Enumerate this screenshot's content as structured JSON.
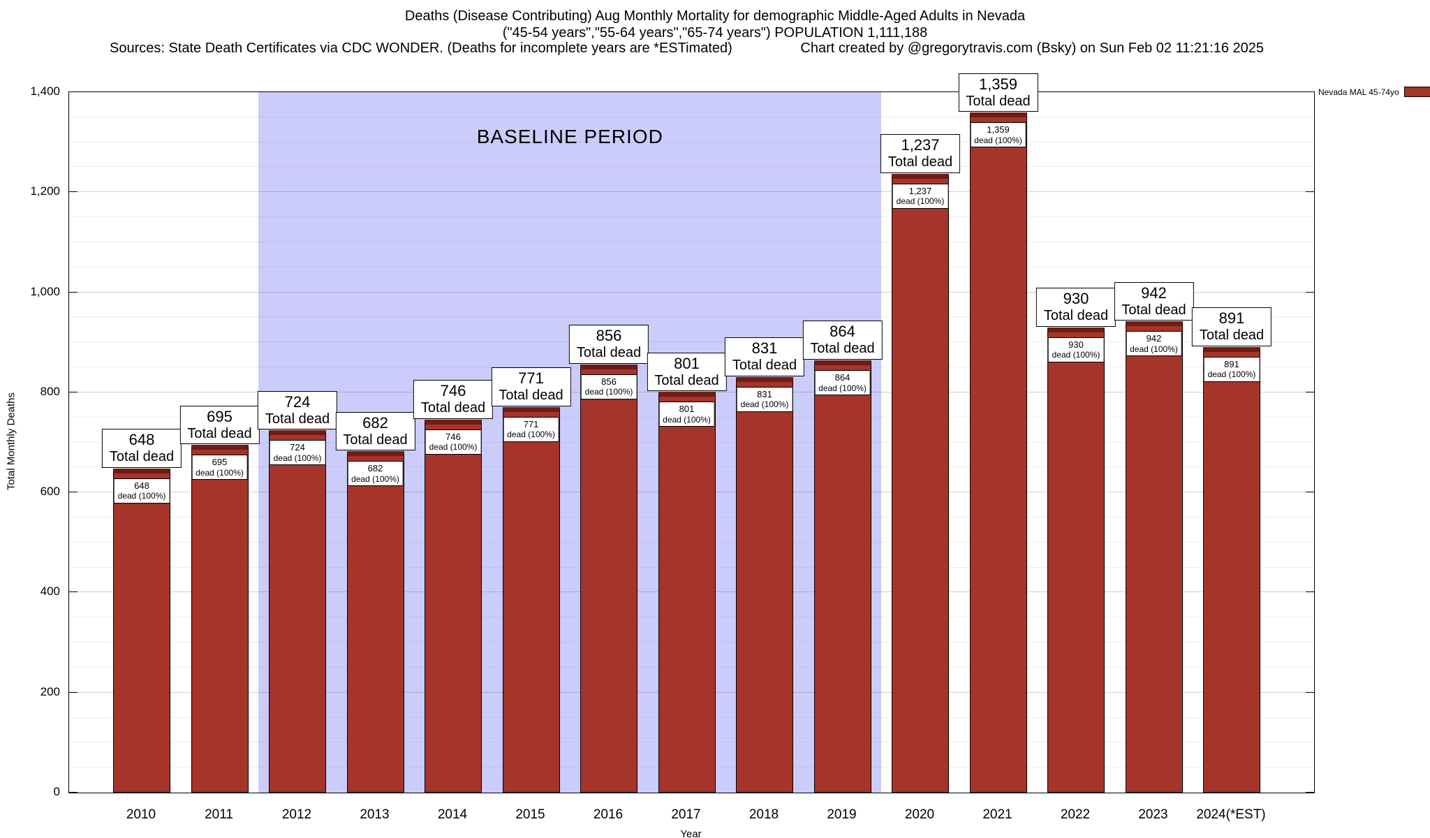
{
  "header": {
    "line1": "Deaths (Disease Contributing) Aug Monthly Mortality for demographic Middle-Aged Adults in Nevada",
    "line2": "(\"45-54 years\",\"55-64 years\",\"65-74 years\") POPULATION 1,111,188",
    "sources": "Sources: State Death Certificates via CDC WONDER. (Deaths for incomplete years are *ESTimated)",
    "credit": "Chart created by @gregorytravis.com (Bsky) on Sun Feb 02 11:21:16 2025"
  },
  "chart_data": {
    "type": "bar",
    "title": "Deaths (Disease Contributing) Aug Monthly Mortality for demographic Middle-Aged Adults in Nevada (\"45-54 years\",\"55-64 years\",\"65-74 years\") POPULATION 1,111,188",
    "xlabel": "Year",
    "ylabel": "Total Monthly Deaths",
    "ylim": [
      0,
      1400
    ],
    "grid": "on",
    "categories": [
      "2010",
      "2011",
      "2012",
      "2013",
      "2014",
      "2015",
      "2016",
      "2017",
      "2018",
      "2019",
      "2020",
      "2021",
      "2022",
      "2023",
      "2024(*EST)"
    ],
    "values": [
      648,
      695,
      724,
      682,
      746,
      771,
      856,
      801,
      831,
      864,
      1237,
      1359,
      930,
      942,
      891
    ],
    "values_formatted": [
      "648",
      "695",
      "724",
      "682",
      "746",
      "771",
      "856",
      "801",
      "831",
      "864",
      "1,237",
      "1,359",
      "930",
      "942",
      "891"
    ],
    "total_label": "Total dead",
    "inner_label": "dead (100%)",
    "bar_color": "#a5342a",
    "bar_cap_color": "#6e1d14",
    "baseline_region": {
      "label": "BASELINE PERIOD",
      "from": "2012",
      "to": "2019",
      "color": "#ccccfb"
    },
    "legend": {
      "label": "Nevada MAL 45-74yo",
      "color": "#a5342a",
      "position": "top-right"
    },
    "yticks": [
      {
        "v": 0,
        "label": "0"
      },
      {
        "v": 200,
        "label": "200"
      },
      {
        "v": 400,
        "label": "400"
      },
      {
        "v": 600,
        "label": "600"
      },
      {
        "v": 800,
        "label": "800"
      },
      {
        "v": 1000,
        "label": "1,000"
      },
      {
        "v": 1200,
        "label": "1,200"
      },
      {
        "v": 1400,
        "label": "1,400"
      }
    ]
  }
}
